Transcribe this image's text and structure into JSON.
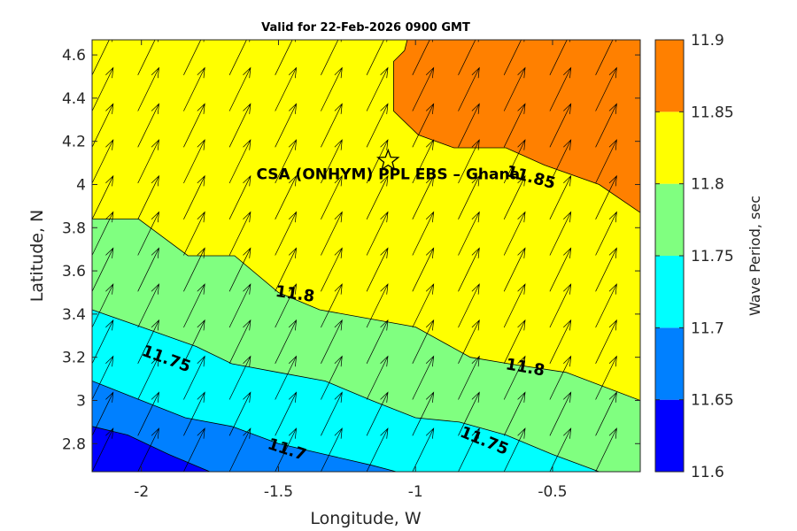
{
  "chart_data": {
    "type": "contour",
    "title": "Valid for 22-Feb-2026 0900 GMT",
    "xlabel": "Longitude, W",
    "ylabel": "Latitude, N",
    "xlim": [
      -2.18,
      -0.18
    ],
    "ylim": [
      2.67,
      4.67
    ],
    "xticks": [
      -2,
      -1.5,
      -1,
      -0.5
    ],
    "xtick_labels": [
      "-2",
      "-1.5",
      "-1",
      "-0.5"
    ],
    "yticks": [
      2.8,
      3.0,
      3.2,
      3.4,
      3.6,
      3.8,
      4.0,
      4.2,
      4.4,
      4.6
    ],
    "ytick_labels": [
      "2.8",
      "3",
      "3.2",
      "3.4",
      "3.6",
      "3.8",
      "4",
      "4.2",
      "4.4",
      "4.6"
    ],
    "colorbar": {
      "label": "Wave Period, sec",
      "levels": [
        11.6,
        11.65,
        11.7,
        11.75,
        11.8,
        11.85,
        11.9
      ],
      "tick_labels": [
        "11.6",
        "11.65",
        "11.7",
        "11.75",
        "11.8",
        "11.85",
        "11.9"
      ],
      "colors": [
        "#0000ff",
        "#0080ff",
        "#00ffff",
        "#80ff80",
        "#ffff00",
        "#ff8000"
      ]
    },
    "contours": [
      {
        "level": 11.85,
        "points": [
          [
            -1.03,
            4.67
          ],
          [
            -1.04,
            4.62
          ],
          [
            -1.08,
            4.57
          ],
          [
            -1.08,
            4.34
          ],
          [
            -0.99,
            4.23
          ],
          [
            -0.86,
            4.17
          ],
          [
            -0.67,
            4.17
          ],
          [
            -0.53,
            4.09
          ],
          [
            -0.33,
            4.0
          ],
          [
            -0.18,
            3.87
          ]
        ]
      },
      {
        "level": 11.8,
        "points": [
          [
            -2.18,
            3.84
          ],
          [
            -2.01,
            3.84
          ],
          [
            -1.83,
            3.67
          ],
          [
            -1.66,
            3.67
          ],
          [
            -1.5,
            3.5
          ],
          [
            -1.35,
            3.42
          ],
          [
            -1.0,
            3.34
          ],
          [
            -0.8,
            3.2
          ],
          [
            -0.66,
            3.17
          ],
          [
            -0.45,
            3.13
          ],
          [
            -0.18,
            3.0
          ]
        ]
      },
      {
        "level": 11.75,
        "points": [
          [
            -2.18,
            3.42
          ],
          [
            -2.0,
            3.34
          ],
          [
            -1.8,
            3.25
          ],
          [
            -1.67,
            3.17
          ],
          [
            -1.5,
            3.13
          ],
          [
            -1.33,
            3.09
          ],
          [
            -1.16,
            3.0
          ],
          [
            -1.0,
            2.92
          ],
          [
            -0.84,
            2.9
          ],
          [
            -0.67,
            2.84
          ],
          [
            -0.5,
            2.75
          ],
          [
            -0.33,
            2.67
          ]
        ]
      },
      {
        "level": 11.7,
        "points": [
          [
            -2.18,
            3.09
          ],
          [
            -2.0,
            3.0
          ],
          [
            -1.84,
            2.92
          ],
          [
            -1.67,
            2.88
          ],
          [
            -1.5,
            2.8
          ],
          [
            -1.33,
            2.75
          ],
          [
            -1.16,
            2.7
          ],
          [
            -1.07,
            2.67
          ]
        ]
      },
      {
        "level": 11.65,
        "points": [
          [
            -2.18,
            2.88
          ],
          [
            -2.05,
            2.84
          ],
          [
            -1.9,
            2.75
          ],
          [
            -1.75,
            2.67
          ]
        ]
      }
    ],
    "contour_labels": [
      {
        "text": "11.85",
        "lon": -0.58,
        "lat": 4.03,
        "angle": 15
      },
      {
        "text": "11.8",
        "lon": -1.44,
        "lat": 3.49,
        "angle": 8
      },
      {
        "text": "11.8",
        "lon": -0.6,
        "lat": 3.15,
        "angle": 10
      },
      {
        "text": "11.75",
        "lon": -1.91,
        "lat": 3.19,
        "angle": 20
      },
      {
        "text": "11.75",
        "lon": -0.75,
        "lat": 2.81,
        "angle": 22
      },
      {
        "text": "11.7",
        "lon": -1.47,
        "lat": 2.77,
        "angle": 18
      }
    ],
    "site": {
      "name": "CSA (ONHYM) PPL EBS  – Ghana",
      "lon": -1.1,
      "lat": 4.11
    },
    "vector_field": {
      "direction_deg": 21,
      "spacing_lon": 0.167,
      "spacing_lat": 0.167,
      "length_deg": 0.215
    }
  }
}
